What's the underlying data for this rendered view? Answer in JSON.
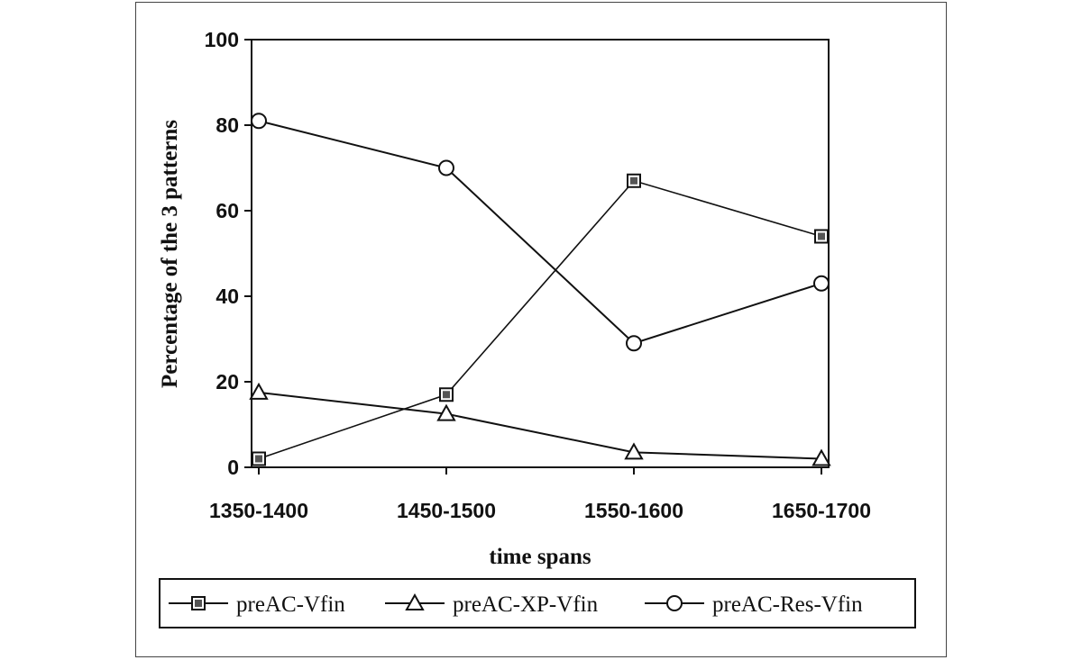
{
  "chart_data": {
    "type": "line",
    "title": "",
    "xlabel": "time spans",
    "ylabel": "Percentage of the 3 patterns",
    "categories": [
      "1350-1400",
      "1450-1500",
      "1550-1600",
      "1650-1700"
    ],
    "ylim": [
      0,
      100
    ],
    "yticks": [
      0,
      20,
      40,
      60,
      80,
      100
    ],
    "grid": false,
    "legend_position": "bottom",
    "series": [
      {
        "name": "preAC-Vfin",
        "marker": "square",
        "values": [
          2,
          17,
          67,
          54
        ]
      },
      {
        "name": "preAC-XP-Vfin",
        "marker": "triangle",
        "values": [
          17.5,
          12.5,
          3.5,
          2
        ]
      },
      {
        "name": "preAC-Res-Vfin",
        "marker": "circle",
        "values": [
          81,
          70,
          29,
          43
        ]
      }
    ],
    "colors": {
      "line": "#111111",
      "axis": "#111111"
    }
  }
}
